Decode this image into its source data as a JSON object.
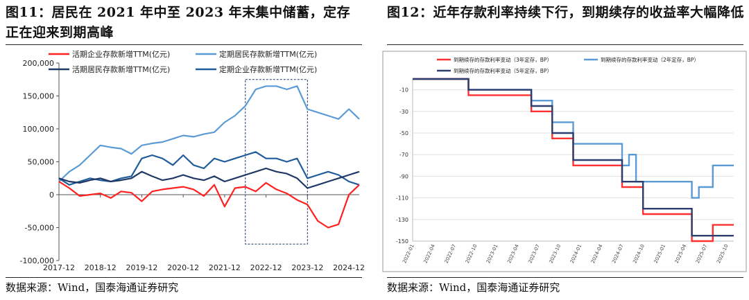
{
  "figures": [
    {
      "title": "图11：居民在 2021 年中至 2023 年末集中储蓄，定存正在迎来到期高峰",
      "source": "数据来源：Wind，国泰海通证券研究"
    },
    {
      "title": "图12：近年存款利率持续下行，到期续存的收益率大幅降低",
      "source": "数据来源：Wind，国泰海通证券研究"
    }
  ],
  "chart_data": [
    {
      "type": "line",
      "title": "",
      "xlabel": "",
      "ylabel": "",
      "ylim": [
        -100000,
        200000
      ],
      "yticks": [
        -100000,
        -50000,
        0,
        50000,
        100000,
        150000,
        200000
      ],
      "ytick_labels": [
        "-100,000",
        "-50,000",
        "0",
        "50,000",
        "100,000",
        "150,000",
        "200,000"
      ],
      "xticks": [
        "2017-12",
        "2018-12",
        "2019-12",
        "2020-12",
        "2021-12",
        "2022-12",
        "2023-12",
        "2024-12"
      ],
      "grid": false,
      "legend": "top",
      "annotation": "dashed box highlighting 2022-06 to 2023-12",
      "series": [
        {
          "name": "活期企业存款新增TTM(亿元)",
          "color": "#ff2020",
          "x": [
            "2017-12",
            "2018-03",
            "2018-06",
            "2018-09",
            "2018-12",
            "2019-03",
            "2019-06",
            "2019-09",
            "2019-12",
            "2020-03",
            "2020-06",
            "2020-09",
            "2020-12",
            "2021-03",
            "2021-06",
            "2021-09",
            "2021-12",
            "2022-03",
            "2022-06",
            "2022-09",
            "2022-12",
            "2023-03",
            "2023-06",
            "2023-09",
            "2023-12",
            "2024-03",
            "2024-06",
            "2024-09",
            "2024-12",
            "2025-03"
          ],
          "values": [
            20000,
            10000,
            -2000,
            0,
            2000,
            -5000,
            5000,
            3000,
            -10000,
            5000,
            8000,
            10000,
            12000,
            8000,
            -2000,
            15000,
            -18000,
            10000,
            12000,
            5000,
            18000,
            8000,
            2000,
            -8000,
            -15000,
            -40000,
            -50000,
            -45000,
            0,
            15000
          ]
        },
        {
          "name": "定期居民存款新增TTM(亿元)",
          "color": "#5b9bd5",
          "x": [
            "2017-12",
            "2018-03",
            "2018-06",
            "2018-09",
            "2018-12",
            "2019-03",
            "2019-06",
            "2019-09",
            "2019-12",
            "2020-03",
            "2020-06",
            "2020-09",
            "2020-12",
            "2021-03",
            "2021-06",
            "2021-09",
            "2021-12",
            "2022-03",
            "2022-06",
            "2022-09",
            "2022-12",
            "2023-03",
            "2023-06",
            "2023-09",
            "2023-12",
            "2024-03",
            "2024-06",
            "2024-09",
            "2024-12",
            "2025-03"
          ],
          "values": [
            20000,
            35000,
            45000,
            60000,
            75000,
            72000,
            70000,
            62000,
            75000,
            78000,
            80000,
            85000,
            90000,
            88000,
            92000,
            95000,
            110000,
            120000,
            135000,
            160000,
            165000,
            165000,
            160000,
            165000,
            130000,
            125000,
            120000,
            115000,
            130000,
            115000
          ]
        },
        {
          "name": "活期居民存款新增TTM(亿元)",
          "color": "#203864",
          "x": [
            "2017-12",
            "2018-03",
            "2018-06",
            "2018-09",
            "2018-12",
            "2019-03",
            "2019-06",
            "2019-09",
            "2019-12",
            "2020-03",
            "2020-06",
            "2020-09",
            "2020-12",
            "2021-03",
            "2021-06",
            "2021-09",
            "2021-12",
            "2022-03",
            "2022-06",
            "2022-09",
            "2022-12",
            "2023-03",
            "2023-06",
            "2023-09",
            "2023-12",
            "2024-03",
            "2024-06",
            "2024-09",
            "2024-12",
            "2025-03"
          ],
          "values": [
            25000,
            20000,
            18000,
            22000,
            25000,
            20000,
            22000,
            25000,
            35000,
            28000,
            22000,
            25000,
            30000,
            25000,
            22000,
            28000,
            20000,
            25000,
            30000,
            35000,
            40000,
            35000,
            32000,
            25000,
            10000,
            15000,
            20000,
            25000,
            30000,
            35000
          ]
        },
        {
          "name": "定期企业存款新增TTM(亿元)",
          "color": "#1f5c99",
          "x": [
            "2017-12",
            "2018-03",
            "2018-06",
            "2018-09",
            "2018-12",
            "2019-03",
            "2019-06",
            "2019-09",
            "2019-12",
            "2020-03",
            "2020-06",
            "2020-09",
            "2020-12",
            "2021-03",
            "2021-06",
            "2021-09",
            "2021-12",
            "2022-03",
            "2022-06",
            "2022-09",
            "2022-12",
            "2023-03",
            "2023-06",
            "2023-09",
            "2023-12",
            "2024-03",
            "2024-06",
            "2024-09",
            "2024-12",
            "2025-03"
          ],
          "values": [
            25000,
            15000,
            20000,
            25000,
            22000,
            20000,
            25000,
            28000,
            55000,
            60000,
            55000,
            45000,
            60000,
            45000,
            40000,
            55000,
            50000,
            55000,
            60000,
            65000,
            55000,
            55000,
            50000,
            55000,
            25000,
            30000,
            35000,
            30000,
            20000,
            15000
          ]
        }
      ]
    },
    {
      "type": "line",
      "title": "",
      "xlabel": "",
      "ylabel": "",
      "ylim": [
        -150,
        0
      ],
      "yticks": [
        -10,
        -30,
        -50,
        -70,
        -90,
        -110,
        -130,
        -150
      ],
      "xticks": [
        "2022-01",
        "2022-04",
        "2022-07",
        "2022-10",
        "2023-01",
        "2023-04",
        "2023-07",
        "2023-10",
        "2024-01",
        "2024-04",
        "2024-07",
        "2024-10",
        "2025-01",
        "2025-04",
        "2025-07",
        "2025-10"
      ],
      "grid": true,
      "legend": "top",
      "series": [
        {
          "name": "到期续存的存款利率变动（3年定存，BP）",
          "color": "#ff3030",
          "x": [
            "2022-01",
            "2022-09",
            "2023-06",
            "2023-09",
            "2023-12",
            "2024-07",
            "2024-10",
            "2025-05",
            "2025-08",
            "2025-11"
          ],
          "values": [
            0,
            -15,
            -30,
            -55,
            -80,
            -100,
            -125,
            -150,
            -135,
            -135
          ]
        },
        {
          "name": "到期续存的存款利率变动（2年定存，BP）",
          "color": "#5b9bd5",
          "x": [
            "2022-01",
            "2022-09",
            "2023-06",
            "2023-09",
            "2023-12",
            "2024-07",
            "2024-08",
            "2024-09",
            "2024-10",
            "2025-05",
            "2025-06",
            "2025-07",
            "2025-08",
            "2025-11"
          ],
          "values": [
            0,
            -10,
            -20,
            -40,
            -60,
            -80,
            -70,
            -95,
            -95,
            -110,
            -100,
            -100,
            -80,
            -80
          ]
        },
        {
          "name": "到期续存的存款利率变动（5年定存，BP）",
          "color": "#2c3e70",
          "x": [
            "2022-01",
            "2022-09",
            "2023-06",
            "2023-09",
            "2023-12",
            "2024-07",
            "2024-10",
            "2025-05",
            "2025-11"
          ],
          "values": [
            0,
            -10,
            -25,
            -50,
            -75,
            -95,
            -120,
            -145,
            -145
          ]
        }
      ]
    }
  ]
}
